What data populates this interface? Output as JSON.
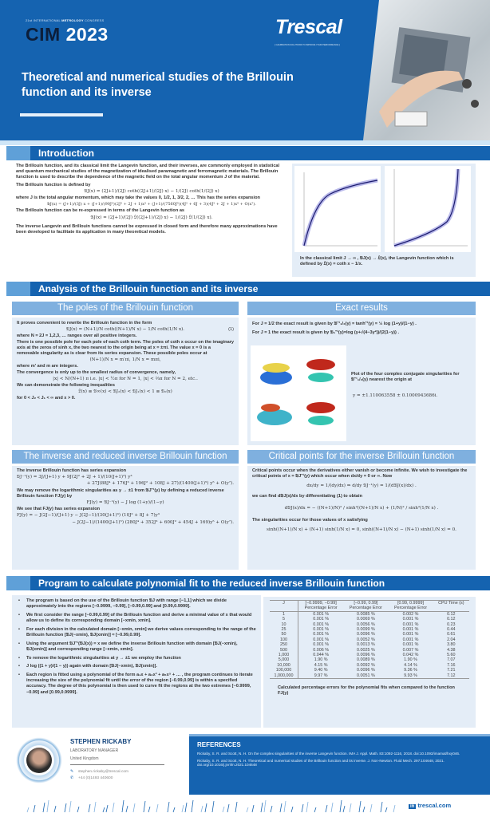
{
  "header": {
    "congress_prefix": "21st INTERNATIONAL",
    "congress_highlight": "METROLOGY",
    "congress_suffix": "CONGRESS",
    "cim": "CIM",
    "year": "2023",
    "brand": "Trescal",
    "tagline": "[ CALIBRATION SOLUTIONS TO IMPROVE YOUR PERFORMANCE ]",
    "title": "Theoretical and numerical studies of the Brillouin function and its inverse"
  },
  "colors": {
    "primary": "#1563b0",
    "accent": "#7fb0df",
    "panel": "#e4edf7",
    "dark": "#0c1e3a"
  },
  "introduction": {
    "heading": "Introduction",
    "p1": "The Brillouin function, and its classical limit the Langevin function, and their inverses, are commonly employed in statistical and quantum mechanical studies of the magnetization of idealised paramagnetic and ferromagnetic materials. The Brillouin function is used to describe the dependence of the magnetic field on the total angular momentum J of the material.",
    "p2": "The Brillouin function is defined by",
    "eq1": "𝔅J(x) = (2J+1)/(2J) coth((2J+1)/(2J) x) − 1/(2J) coth(1/(2J) x)",
    "p3": "where J is the total angular momentum, which may take the values 0, 1/2, 1, 3/2, 2, … This has the series expansion",
    "eq2": "𝔅J(x) = (J+1)/(3J) x + (J+1)/(90J³)(2J² + 2J + 1)x³ + (J+1)/(7560J⁵)(4J² + 6J + 3)(4J² + 2J + 1)x⁵ + O(x⁷).",
    "p4": "The Brillouin function can be re-expressed in terms of the Langevin function as",
    "eq3": "𝔅J(x) = (2J+1)/(2J) 𝔏((2J+1)/(2J) x) − 1/(2J) 𝔏(1/(2J) x).",
    "p5": "The inverse Langevin and Brillouin functions cannot be expressed in closed form and therefore many approximations have been developed to facilitate its application in many theoretical models.",
    "caption": "In the classical limit J → ∞ , 𝔅J(x) → 𝔏(x), the Langevin function which is defined by 𝔏(x) = coth x − 1/x."
  },
  "analysis": {
    "heading": "Analysis of the Brillouin function and its inverse",
    "poles": {
      "heading": "The poles of the Brillouin function",
      "p1": "It proves convenient to rewrite the Brillouin function in the form",
      "eq1": "𝔅J(x) = (N+1)/N coth((N+1)/N x) − 1/N coth(1/N x).",
      "eq1_num": "(1)",
      "p2": "where N = 2J = 1,2,3, … ranges over all positive integers.",
      "p3": "There is one possible pole for each pole of each coth term. The poles of coth x occur on the imaginary axis at the zeros of sinh x, the two nearest to the origin being at x = ±πi. The value x = 0 is a removable singularity as is clear from its series expansion. These possible poles occur at",
      "eq2": "(N+1)/N x = m′πi,        1/N x = mπi,",
      "p4": "where m′ and m are integers.",
      "p5": "The convergence is only up to the smallest radius of convergence, namely,",
      "eq3": "|x| < N/(N+1) π    i.e. |x| < ½π for N = 1, |x| < ⅔π for N = 2, etc..",
      "p6": "We can demonstrate the following inequalities",
      "eq4": "𝔏(x) ≡ 𝔅∞(x) < 𝔅J₂(x) < 𝔅J₁(x) < 1 ≡ 𝔅₀(x)",
      "p7": "for 0 < J₂ < J₁ < ∞ and x > 0."
    },
    "exact": {
      "heading": "Exact results",
      "line1": "For J = 1/2 the exact result is given by 𝔅⁻¹₁/₂(y) = tanh⁻¹(y) = ½ log (1+y)/(1−y) .",
      "line2": "For J = 1 the exact result is given by 𝔅₁⁻¹(y)=log (y+√(4−3y²))/(2(1−y)) .",
      "caption": "Plot of the four complex conjugate singularities for 𝔅⁻¹₁/₂(y) nearest the origin at",
      "value": "y = ±1.110063558 ± 0.1000943686i."
    },
    "inverse": {
      "heading": "The inverse and reduced inverse Brillouin function",
      "p1": "The inverse Brillouin function has series expansion",
      "eq1": "𝔅J⁻¹(y) = 3J/(J+1) y + 9J(2J² + 2J + 1)/(10(J+1)³) y³",
      "eq1b": "+ 27J(88J⁴ + 176J³ + 196J² + 108J + 27)/(1400(J+1)⁵) y⁵ + O(y⁷).",
      "p2": "We may remove the logarithmic singularities as y → ±1 from 𝔅J⁻¹(y) by defining a reduced inverse Brillouin function FJ(y) by",
      "eq2": "FJ(y) = 𝔅J⁻¹(y) − J log (1+y)/(1−y)",
      "p3": "We see that FJ(y) has series expansion",
      "eq3": "FJ(y) = − J(2J−1)/(J+1) y − J(2J−1)/(30(J+1)³) (10J² + 8J + 7)y³",
      "eq3b": "− J(2J−1)/(1400(J+1)⁵) (280J⁴ + 352J³ + 600J² + 454J + 169)y⁵ + O(y⁷)."
    },
    "critical": {
      "heading": "Critical points for the inverse Brillouin function",
      "p1": "Critical points occur when the derivatives either vanish or become infinite. We wish to investigate the critical points of x = 𝔅J⁻¹(y) which occur when dx/dy = 0 or ∞. Now",
      "eq1": "dx/dy = 1/(dy/dx) ⇒ d/dy 𝔅J⁻¹(y) = 1/(d𝔅J(x)/dx) .",
      "p2": "we can find d𝔅J(x)/dx by differentiating (1) to obtain",
      "eq2": "d𝔅J(x)/dx = − ((N+1)/N)² / sinh²((N+1)/N x) + (1/N)² / sinh²(1/N x) .",
      "p3": "The singularities occur for those values of x satisfying",
      "eq3": "sinh((N+1)/N x) + (N+1) sinh(1/N x) = 0, sinh((N+1)/N x) − (N+1) sinh(1/N x) = 0."
    }
  },
  "program": {
    "heading": "Program to calculate polynomial fit to the reduced inverse Brillouin function",
    "bullets": [
      "The program is based on the use of the Brillouin function 𝔅J with range [−1,1] which we divide approximately into the regions [−0.9999, −0.99], [−0.99,0.99] and [0.99,0.9999].",
      "We first consider the range [−0.99,0.99] of the Brillouin function and derive a minimal value of x that would allow us to define its corresponding domain [−xmin, xmin].",
      "For each division in the calculated domain [−xmin, xmin] we derive values corresponding to the range of the Brillouin function [𝔅J(−xmin), 𝔅J(xmin)] ≈ [−0.99,0.99].",
      "Using the argument 𝔅J⁻¹(𝔅J(x)) = x we define the inverse Brillouin function with domain [𝔅J(−xmin), 𝔅J(xmin)] and corresponding range [−xmin, xmin].",
      "To remove the logarithmic singularities at y → ±1 we employ the function",
      "J log ((1 + y)/(1 − y)) again with domain [𝔅J(−xmin), 𝔅J(xmin)].",
      "Each region is fitted using a polynomial of the form a₁x + a₃x³ + a₅x⁵ + … , the program continues to iterate increasing the size of the polynomial fit until the error of the region [−0.99,0.99] is within a specified accuracy. The degree of this polynomial is then used to curve fit the regions at the two extremes [−0.9999, −0.99] and [0.99,0.9999]."
    ],
    "table": {
      "headers": [
        "J",
        "[−0.9999, −0.99]",
        "[−0.99, 0.99]",
        "[0.99, 0.9999]",
        "CPU Time (s)"
      ],
      "subheaders": [
        "",
        "Percentage Error",
        "Percentage Error",
        "Percentage Error",
        ""
      ],
      "rows": [
        [
          "1",
          "0.001 %",
          "0.0085 %",
          "0.002 %",
          "0.12"
        ],
        [
          "5",
          "0.001 %",
          "0.0069 %",
          "0.001 %",
          "0.12"
        ],
        [
          "10",
          "0.001 %",
          "0.0056 %",
          "0.001 %",
          "0.23"
        ],
        [
          "25",
          "0.001 %",
          "0.0099 %",
          "0.001 %",
          "0.44"
        ],
        [
          "50",
          "0.001 %",
          "0.0096 %",
          "0.001 %",
          "0.61"
        ],
        [
          "100",
          "0.001 %",
          "0.0052 %",
          "0.001 %",
          "2.04"
        ],
        [
          "250",
          "0.001 %",
          "0.0013 %",
          "0.001 %",
          "3.80"
        ],
        [
          "500",
          "0.006 %",
          "0.0025 %",
          "0.007 %",
          "4.38"
        ],
        [
          "1,000",
          "0.044 %",
          "0.0096 %",
          "0.042 %",
          "5.60"
        ],
        [
          "5,000",
          "1.90 %",
          "0.0089 %",
          "1.90 %",
          "7.07"
        ],
        [
          "10,000",
          "4.15 %",
          "0.0092 %",
          "4.14 %",
          "7.16"
        ],
        [
          "100,000",
          "9.40 %",
          "0.0096 %",
          "9.36 %",
          "7.21"
        ],
        [
          "1,000,000",
          "9.97 %",
          "0.0051 %",
          "9.93 %",
          "7.12"
        ]
      ],
      "caption": "Calculated percentage errors for the polynomial fits when compared to the function FJ(y)"
    }
  },
  "author": {
    "name": "STEPHEN RICKABY",
    "role": "LABORATORY MANAGER",
    "country": "United Kingdom",
    "email": "stephen.rickaby@trescal.com",
    "phone": "+44 (0)1493 440600"
  },
  "references": {
    "heading": "REFERENCES",
    "items": [
      "Rickaby, S. R. and Scott, N. H. On the complex singularities of the inverse Langevin function. IMA J. Appl. Math. 83:1092-1116, 2018. doi:10.1093/imamat/hxy046.",
      "Rickaby, S. R. and Scott, N. H. Theoretical and numerical studies of the Brillouin function and its inverse. J. Non-Newton. Fluid Mech. 297:104648, 2021. doi.org/10.1016/j.jnnfm.2021.104648"
    ]
  },
  "footer": {
    "website": "trescal.com",
    "social": "in"
  }
}
